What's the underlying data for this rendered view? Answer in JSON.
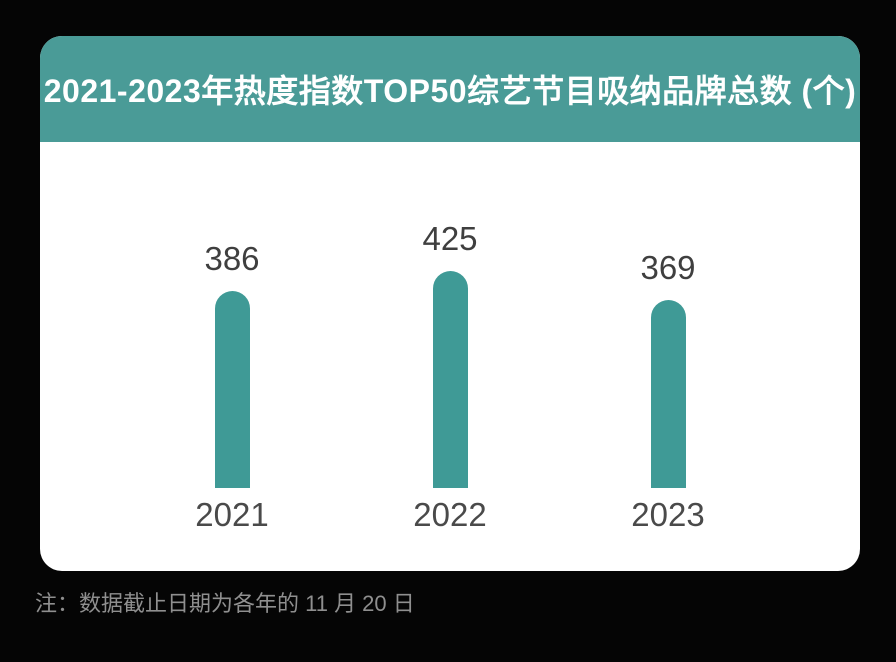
{
  "page": {
    "background": "#050505"
  },
  "header": {
    "background": "#4a9b97",
    "text_color": "#ffffff"
  },
  "chart_data": {
    "type": "bar",
    "title": "2021-2023年热度指数TOP50综艺节目吸纳品牌总数 (个)",
    "categories": [
      "2021",
      "2022",
      "2023"
    ],
    "values": [
      386,
      425,
      369
    ],
    "xlabel": "",
    "ylabel": "",
    "ylim": [
      0,
      425
    ],
    "grid": false,
    "legend": "none",
    "value_labels_shown": true,
    "bar_color": "#3f9a96",
    "value_label_color": "#3f3f3f",
    "category_label_color": "#4a4a4a",
    "card_background": "#ffffff"
  },
  "footnote": {
    "text": "注：数据截止日期为各年的 11 月 20 日",
    "color": "#8f8f8f"
  }
}
